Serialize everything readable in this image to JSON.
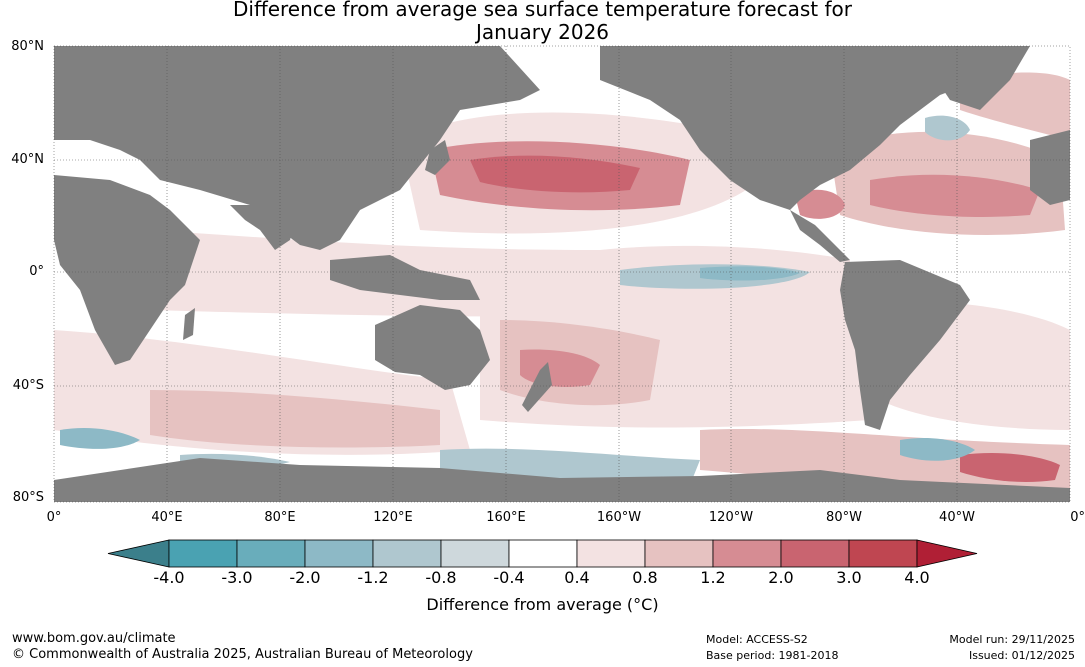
{
  "title": {
    "line1": "Difference from average sea surface temperature forecast for",
    "line2": "January 2026"
  },
  "axes": {
    "lat_labels": [
      "80°N",
      "40°N",
      "0°",
      "40°S",
      "80°S"
    ],
    "lon_labels": [
      "0°",
      "40°E",
      "80°E",
      "120°E",
      "160°E",
      "160°W",
      "120°W",
      "80°W",
      "40°W",
      "0°"
    ]
  },
  "colorbar": {
    "title": "Difference from average (°C)",
    "tick_labels": [
      "-4.0",
      "-3.0",
      "-2.0",
      "-1.2",
      "-0.8",
      "-0.4",
      "0.4",
      "0.8",
      "1.2",
      "2.0",
      "3.0",
      "4.0"
    ],
    "colors": [
      "#4aa2b2",
      "#69adbb",
      "#8db9c6",
      "#afc7cf",
      "#ced8dc",
      "#ffffff",
      "#f3e2e2",
      "#e6c2c1",
      "#d68c93",
      "#c96470",
      "#bf4651"
    ],
    "extend_low_color": "#3b7f8b",
    "extend_high_color": "#b01f35"
  },
  "map_colors": {
    "land": "#808080",
    "ocean_warm_light": "#f3e2e2",
    "ocean_warm_mid": "#e6c2c1",
    "ocean_warm_high": "#d68c93",
    "ocean_warm_strong": "#c96470",
    "ocean_cool": "#afc7cf",
    "ocean_cool_mid": "#8db9c6"
  },
  "footer": {
    "url": "www.bom.gov.au/climate",
    "copyright": "© Commonwealth of Australia 2025, Australian Bureau of Meteorology",
    "model": "Model: ACCESS-S2",
    "base_period": "Base period: 1981-2018",
    "model_run": "Model run: 29/11/2025",
    "issued": "Issued: 01/12/2025"
  }
}
